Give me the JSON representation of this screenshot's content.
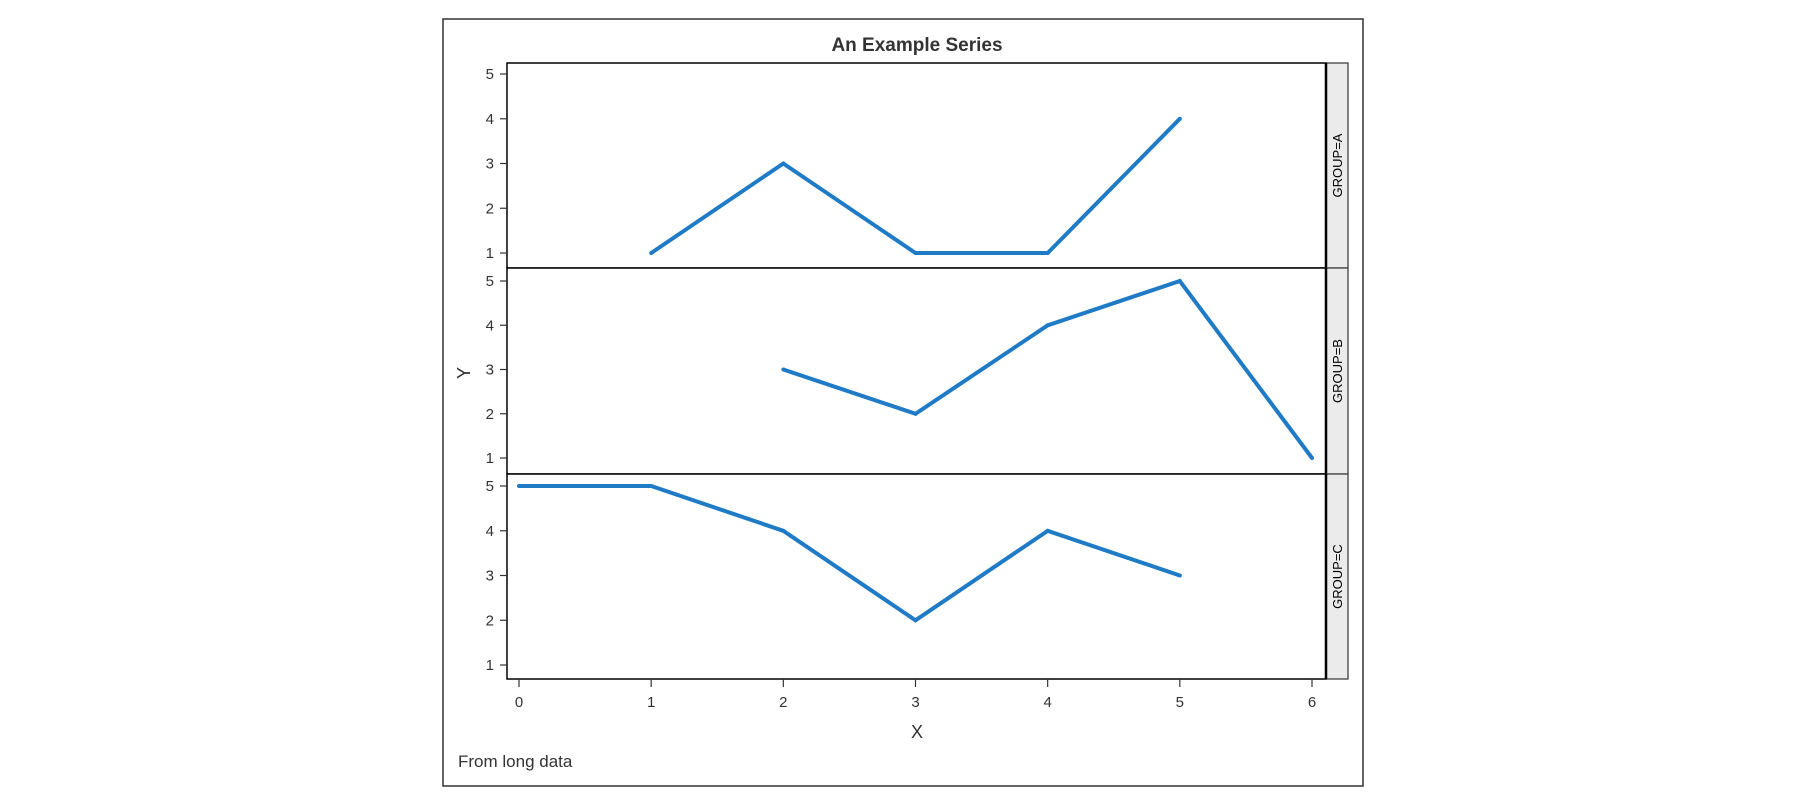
{
  "chart_data": {
    "type": "line",
    "title": "An Example Series",
    "xlabel": "X",
    "ylabel": "Y",
    "footnote": "From long data",
    "xlim": [
      0,
      6
    ],
    "ylim": [
      1,
      5
    ],
    "x_ticks": [
      "0",
      "1",
      "2",
      "3",
      "4",
      "5",
      "6"
    ],
    "y_ticks": [
      "1",
      "2",
      "3",
      "4",
      "5"
    ],
    "line_color": "#1f7bc6",
    "panels": [
      {
        "name": "A",
        "label": "GROUP=A",
        "x": [
          1,
          2,
          3,
          4,
          5
        ],
        "y": [
          1,
          3,
          1,
          1,
          4
        ]
      },
      {
        "name": "B",
        "label": "GROUP=B",
        "x": [
          2,
          3,
          4,
          5,
          6
        ],
        "y": [
          3,
          2,
          4,
          5,
          1
        ]
      },
      {
        "name": "C",
        "label": "GROUP=C",
        "x": [
          0,
          1,
          2,
          3,
          4,
          5
        ],
        "y": [
          5,
          5,
          4,
          2,
          4,
          3
        ]
      }
    ]
  }
}
